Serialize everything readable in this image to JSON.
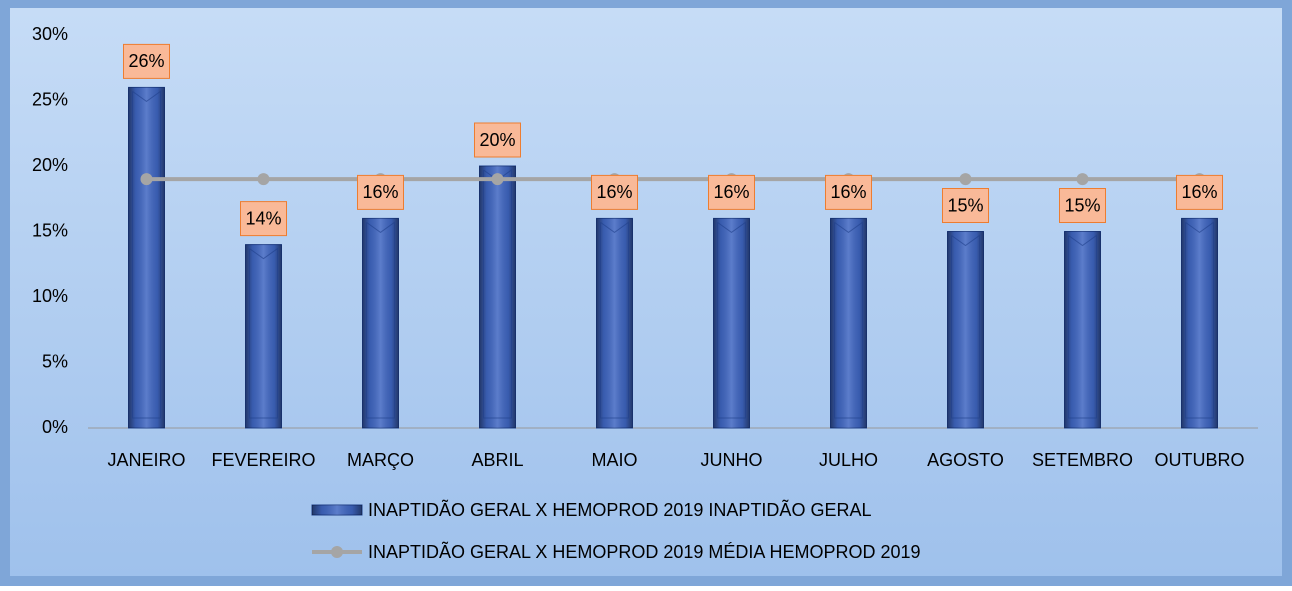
{
  "chart_data": {
    "type": "bar",
    "categories": [
      "JANEIRO",
      "FEVEREIRO",
      "MARÇO",
      "ABRIL",
      "MAIO",
      "JUNHO",
      "JULHO",
      "AGOSTO",
      "SETEMBRO",
      "OUTUBRO"
    ],
    "series": [
      {
        "name": "INAPTIDÃO GERAL X HEMOPROD 2019 INAPTIDÃO GERAL",
        "type": "bar",
        "color": "#3f66c2",
        "values": [
          26,
          14,
          16,
          20,
          16,
          16,
          16,
          15,
          15,
          16
        ],
        "value_labels": [
          "26%",
          "14%",
          "16%",
          "20%",
          "16%",
          "16%",
          "16%",
          "15%",
          "15%",
          "16%"
        ]
      },
      {
        "name": "INAPTIDÃO GERAL X HEMOPROD 2019 MÉDIA HEMOPROD 2019",
        "type": "line",
        "color": "#a5a5a5",
        "values": [
          19,
          19,
          19,
          19,
          19,
          19,
          19,
          19,
          19,
          19
        ]
      }
    ],
    "ylim": [
      0,
      30
    ],
    "yticks": [
      {
        "value": 0,
        "label": "0%"
      },
      {
        "value": 5,
        "label": "5%"
      },
      {
        "value": 10,
        "label": "10%"
      },
      {
        "value": 15,
        "label": "15%"
      },
      {
        "value": 20,
        "label": "20%"
      },
      {
        "value": 25,
        "label": "25%"
      },
      {
        "value": 30,
        "label": "30%"
      }
    ],
    "grid": false,
    "legend": "bottom"
  }
}
